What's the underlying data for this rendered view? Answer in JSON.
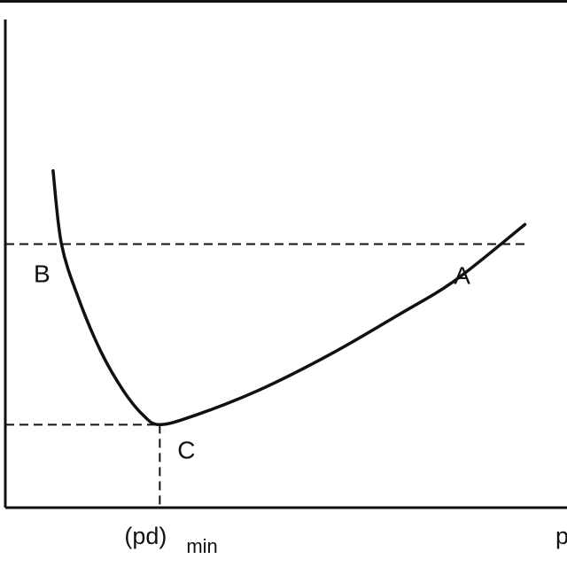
{
  "colors": {
    "line": "#111111",
    "background": "#ffffff"
  },
  "chart_data": {
    "type": "line",
    "title": "",
    "xlabel": "p",
    "ylabel": "",
    "grid": false,
    "xlim": [
      0,
      100
    ],
    "ylim": [
      0,
      100
    ],
    "series": [
      {
        "points": [
          [
            8.5,
            69
          ],
          [
            10,
            54
          ],
          [
            13,
            43
          ],
          [
            17,
            32
          ],
          [
            21,
            24
          ],
          [
            24.5,
            19
          ],
          [
            27.5,
            17
          ],
          [
            34,
            19
          ],
          [
            45,
            24
          ],
          [
            58,
            31.5
          ],
          [
            70,
            39.5
          ],
          [
            80,
            46.5
          ],
          [
            92.5,
            58
          ]
        ]
      }
    ],
    "reference_lines": {
      "upper_y": 54,
      "lower_y": 17,
      "min_x": 27.5
    },
    "annotations": [
      {
        "label": "B",
        "x": 10,
        "y": 54
      },
      {
        "label": "A",
        "x": 81,
        "y": 54
      },
      {
        "label": "C",
        "x": 27.5,
        "y": 17
      }
    ],
    "x_tick": {
      "main": "(pd)",
      "sub": "min",
      "value": 27.5
    }
  }
}
